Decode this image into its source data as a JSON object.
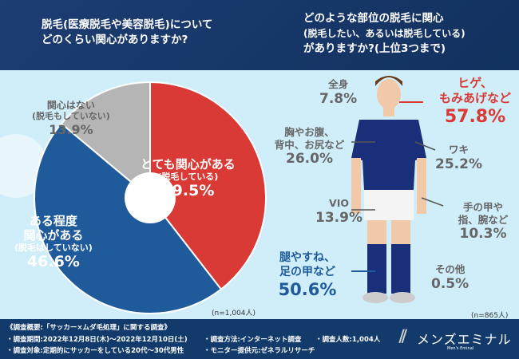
{
  "header": {
    "q1": [
      "脱毛(医療脱毛や美容脱毛)について",
      "どのくらい関心がありますか?"
    ],
    "q2": [
      "どのような部位の脱毛に関心",
      "(脱毛したい、あるいは脱毛している)",
      "がありますか?(上位3つまで)"
    ]
  },
  "chart_data": [
    {
      "type": "pie",
      "donut": true,
      "categories": [
        "とても関心がある(脱毛している)",
        "ある程度関心がある(脱毛はしていない)",
        "関心はない(脱毛もしていない)"
      ],
      "values": [
        39.5,
        46.6,
        13.9
      ],
      "colors": [
        "#d93a35",
        "#1f5b9a",
        "#b5b5b5"
      ],
      "labels": [
        {
          "main": "とても関心がある",
          "sub": "(脱毛している)",
          "pct": "39.5%"
        },
        {
          "main": "ある程度\n関心がある",
          "sub": "(脱毛はしていない)",
          "pct": "46.6%"
        },
        {
          "main": "関心はない",
          "sub": "(脱毛もしていない)",
          "pct": "13.9%"
        }
      ],
      "note": "(n=1,004人)"
    },
    {
      "type": "table",
      "categories": [
        "全身",
        "ヒゲ、もみあげなど",
        "胸やお腹、背中、お尻など",
        "ワキ",
        "VIO",
        "手の甲や指、腕など",
        "腿やすね、足の甲など",
        "その他"
      ],
      "values": [
        7.8,
        57.8,
        26.0,
        25.2,
        13.9,
        10.3,
        50.6,
        0.5
      ],
      "labels": [
        "7.8%",
        "57.8%",
        "26.0%",
        "25.2%",
        "13.9%",
        "10.3%",
        "50.6%",
        "0.5%"
      ],
      "note": "(n=865人)"
    }
  ],
  "footer": {
    "title": "《調査概要:「サッカー×ムダ毛処理」に関する調査》",
    "period": "・調査期間:2022年12月8日(木)〜2022年12月10日(土)",
    "method": "・調査方法:インターネット調査",
    "count": "・調査人数:1,004人",
    "target": "・調査対象:定期的にサッカーをしている20代〜30代男性",
    "provider": "・モニター提供元:ゼネラルリサーチ",
    "logo": "メンズエミナル",
    "logo_sub": "Men's Eminal"
  }
}
